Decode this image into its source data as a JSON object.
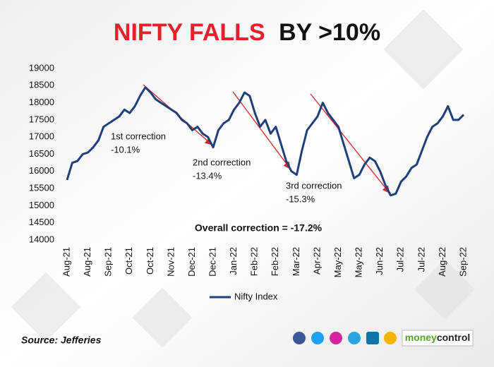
{
  "chart_data": {
    "type": "line",
    "title_highlight": "NIFTY FALLS",
    "title_rest": "BY >10%",
    "categories": [
      "Aug-21",
      null,
      null,
      null,
      "Aug-21",
      null,
      null,
      null,
      "Sep-21",
      null,
      null,
      null,
      "Oct-21",
      null,
      null,
      null,
      "Oct-21",
      null,
      null,
      null,
      "Nov-21",
      null,
      null,
      null,
      "Dec-21",
      null,
      null,
      null,
      "Dec-21",
      null,
      null,
      null,
      "Jan-22",
      null,
      null,
      null,
      "Feb-22",
      null,
      null,
      null,
      "Feb-22",
      null,
      null,
      null,
      "Mar-22",
      null,
      null,
      null,
      "Apr-22",
      null,
      null,
      null,
      "May-22",
      null,
      null,
      null,
      "May-22",
      null,
      null,
      null,
      "Jun-22",
      null,
      null,
      null,
      "Jul-22",
      null,
      null,
      null,
      "Jul-22",
      null,
      null,
      null,
      "Aug-22",
      null,
      null,
      null,
      "Sep-22"
    ],
    "series": [
      {
        "name": "Nifty Index",
        "color": "#1f3f7a",
        "values": [
          15750,
          16250,
          16300,
          16500,
          16550,
          16700,
          16900,
          17300,
          17400,
          17500,
          17600,
          17800,
          17700,
          17900,
          18200,
          18450,
          18300,
          18100,
          18000,
          17900,
          17800,
          17700,
          17500,
          17400,
          17200,
          17300,
          17100,
          17000,
          16700,
          17200,
          17400,
          17500,
          17800,
          18000,
          18300,
          18200,
          17700,
          17300,
          17500,
          17100,
          17300,
          16800,
          16300,
          16000,
          15900,
          16600,
          17200,
          17400,
          17600,
          18000,
          17700,
          17500,
          17300,
          16800,
          16300,
          15800,
          15900,
          16200,
          16400,
          16300,
          16000,
          15600,
          15300,
          15350,
          15700,
          15850,
          16100,
          16200,
          16600,
          17000,
          17300,
          17400,
          17600,
          17900,
          17500,
          17500,
          17650
        ]
      }
    ],
    "ylim": [
      14000,
      19000
    ],
    "yticks": [
      14000,
      14500,
      15000,
      15500,
      16000,
      16500,
      17000,
      17500,
      18000,
      18500,
      19000
    ],
    "annotations": [
      {
        "text": "1st correction",
        "change": "-10.1%"
      },
      {
        "text": "2nd correction",
        "change": "-13.4%"
      },
      {
        "text": "3rd correction",
        "change": "-15.3%"
      }
    ],
    "overall_note": "Overall correction = -17.2%",
    "arrow_color": "#d62828"
  },
  "footer": {
    "source": "Source: Jefferies",
    "brand": [
      "money",
      "control"
    ]
  }
}
